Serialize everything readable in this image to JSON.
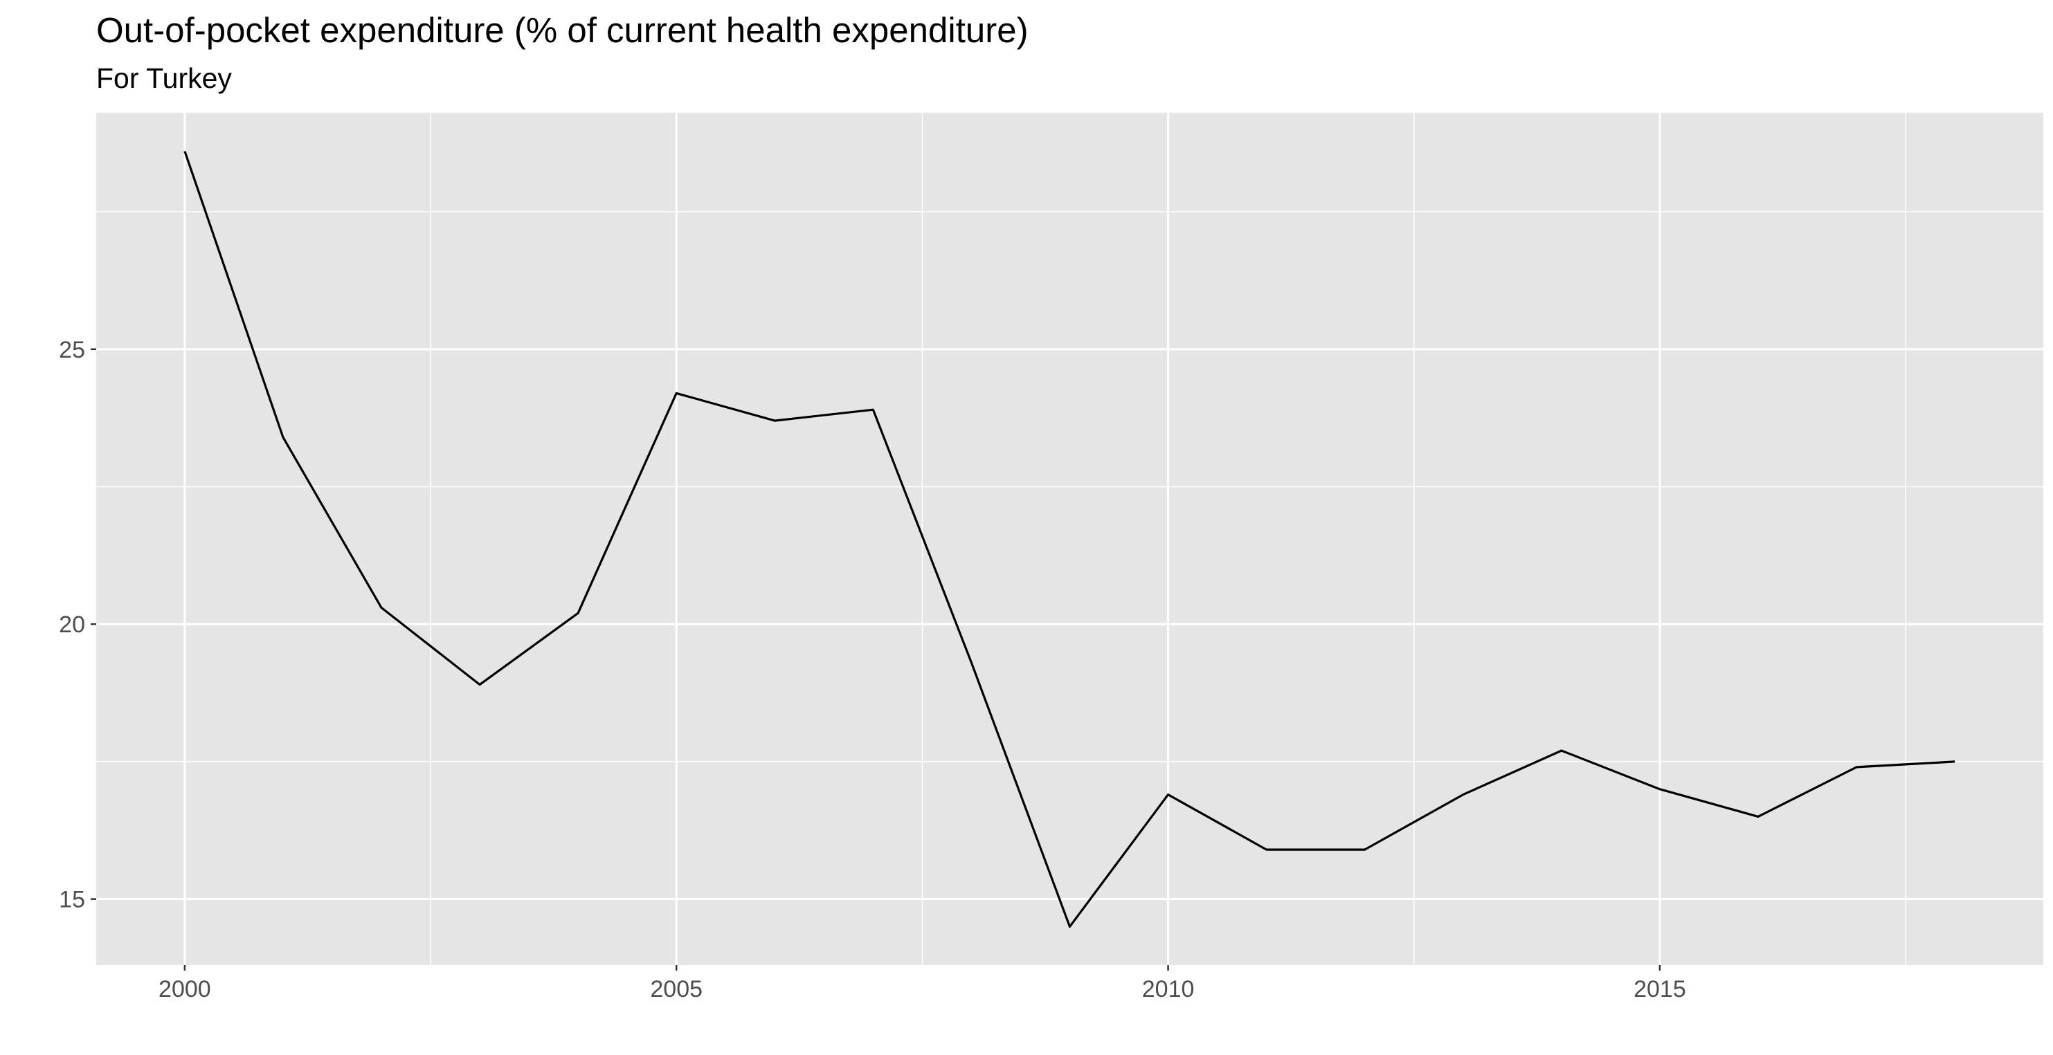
{
  "chart_data": {
    "type": "line",
    "title": "Out-of-pocket expenditure (% of current health expenditure)",
    "subtitle": "For Turkey",
    "xlabel": "",
    "ylabel": "",
    "x": [
      2000,
      2001,
      2002,
      2003,
      2004,
      2005,
      2006,
      2007,
      2008,
      2009,
      2010,
      2011,
      2012,
      2013,
      2014,
      2015,
      2016,
      2017,
      2018
    ],
    "series": [
      {
        "values": [
          28.6,
          23.4,
          20.3,
          18.9,
          20.2,
          24.2,
          23.7,
          23.9,
          19.3,
          14.5,
          16.9,
          15.9,
          15.9,
          16.9,
          17.7,
          17.0,
          16.5,
          17.4,
          17.5
        ]
      }
    ],
    "xlim": [
      1999.1,
      2018.9
    ],
    "ylim": [
      13.8,
      29.3
    ],
    "x_ticks": [
      "2000",
      "2005",
      "2010",
      "2015"
    ],
    "y_ticks": [
      "15",
      "20",
      "25"
    ],
    "grid": true,
    "legend": "none",
    "colors": {
      "panel_background": "#e5e5e5",
      "grid_line": "#ffffff",
      "series_line": "#000000",
      "tick_text": "#4d4d4d",
      "tick_mark": "#333333"
    }
  }
}
